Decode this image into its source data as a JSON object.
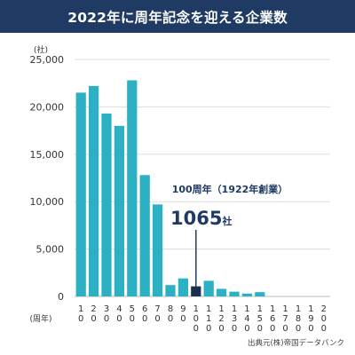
{
  "header": {
    "title": "2022年に周年記念を迎える企業数"
  },
  "chart_data": {
    "type": "bar",
    "title": "2022年に周年記念を迎える企業数",
    "y_unit_label": "(社)",
    "x_unit_label": "(周年)",
    "ylim": [
      0,
      25000
    ],
    "y_ticks": [
      "0",
      "5,000",
      "10,000",
      "15,000",
      "20,000",
      "25,000"
    ],
    "y_tick_values": [
      0,
      5000,
      10000,
      15000,
      20000,
      25000
    ],
    "grid": true,
    "categories": [
      "10",
      "20",
      "30",
      "40",
      "50",
      "60",
      "70",
      "80",
      "90",
      "100",
      "110",
      "120",
      "130",
      "140",
      "150",
      "160",
      "170",
      "180",
      "190",
      "200"
    ],
    "values": [
      21500,
      22200,
      19300,
      18000,
      22800,
      12800,
      9700,
      1200,
      1900,
      1065,
      1650,
      800,
      500,
      300,
      450,
      0,
      0,
      0,
      0,
      0
    ],
    "highlight_category": "100",
    "colors": {
      "bar": "#2bb0c4",
      "highlight": "#1a2e4f",
      "grid": "#dddddd",
      "annotation": "#1f3a63"
    },
    "annotation": {
      "line1": "100周年（1922年創業）",
      "value": "1065",
      "unit": "社"
    }
  },
  "footer": {
    "source": "出典元(株)帝国データバンク"
  }
}
